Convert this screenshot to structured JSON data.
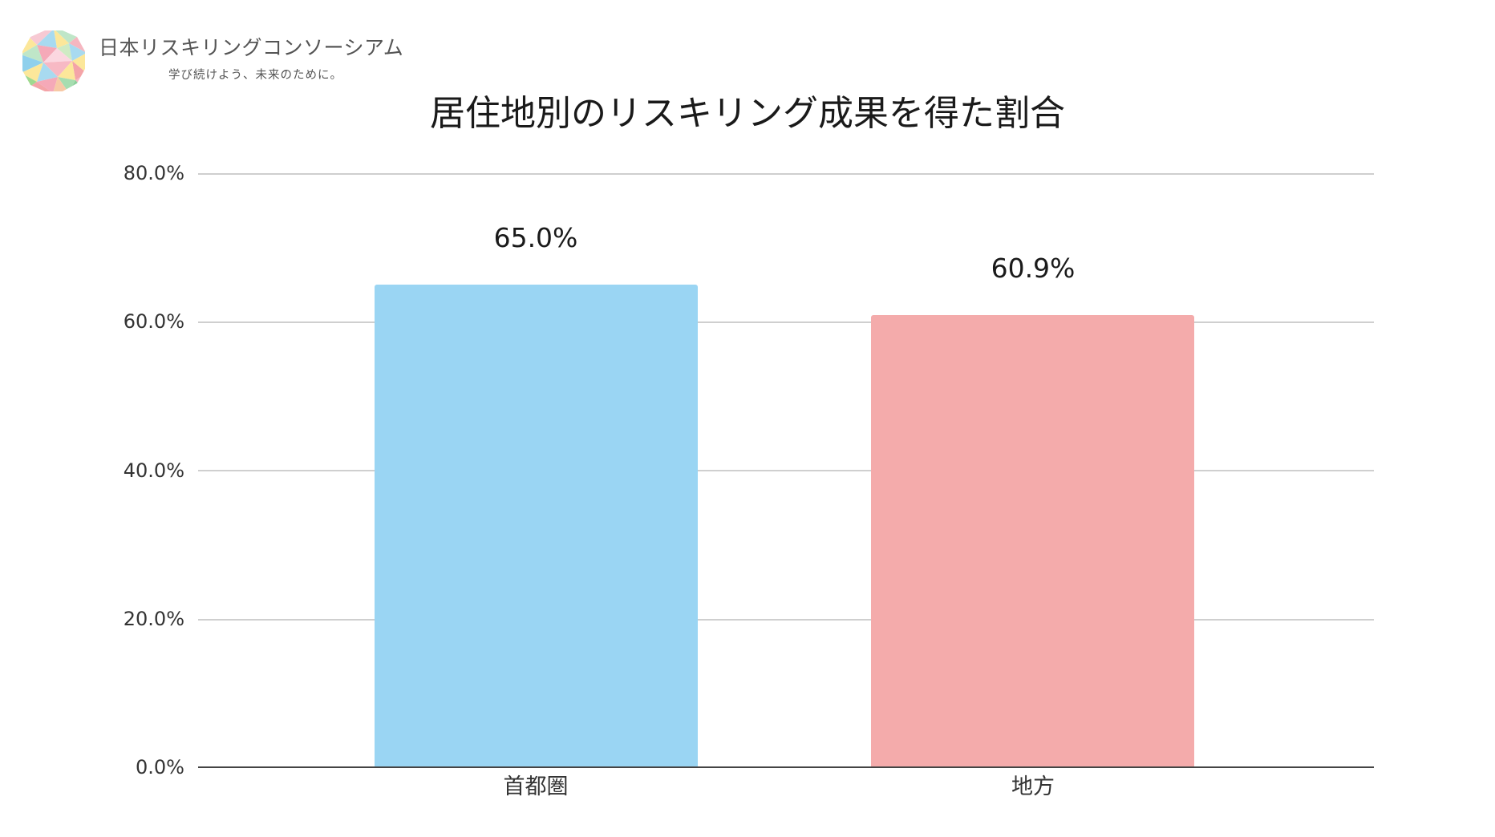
{
  "header": {
    "logo_icon": "faceted-sphere-logo-icon",
    "logo_name": "日本リスキリングコンソーシアム",
    "logo_tagline": "学び続けよう、未来のために。"
  },
  "chart": {
    "title": "居住地別のリスキリング成果を得た割合",
    "y_ticks": [
      "0.0%",
      "20.0%",
      "40.0%",
      "60.0%",
      "80.0%"
    ],
    "bars": [
      {
        "category": "首都圏",
        "value": 65.0,
        "label": "65.0%",
        "color": "#9AD5F3"
      },
      {
        "category": "地方",
        "value": 60.9,
        "label": "60.9%",
        "color": "#F4ABAB"
      }
    ],
    "colors": {
      "grid": "#CFCFCF",
      "axis": "#444444"
    }
  },
  "chart_data": {
    "type": "bar",
    "title": "居住地別のリスキリング成果を得た割合",
    "categories": [
      "首都圏",
      "地方"
    ],
    "values": [
      65.0,
      60.9
    ],
    "data_labels": [
      "65.0%",
      "60.9%"
    ],
    "colors": [
      "#9AD5F3",
      "#F4ABAB"
    ],
    "xlabel": "",
    "ylabel": "",
    "ylim": [
      0,
      80
    ],
    "yticks": [
      "0.0%",
      "20.0%",
      "40.0%",
      "60.0%",
      "80.0%"
    ],
    "grid": true,
    "legend": null
  }
}
